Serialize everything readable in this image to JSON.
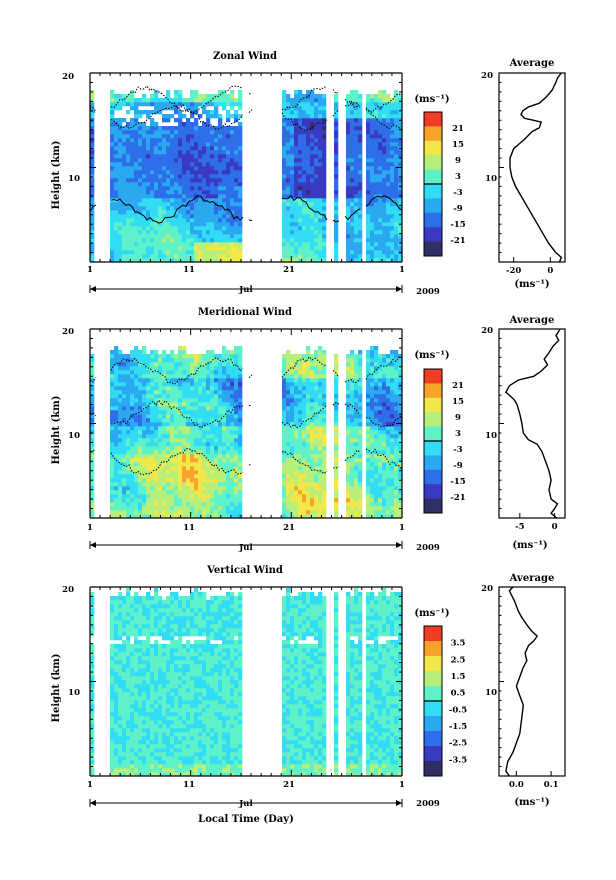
{
  "chart_data": [
    {
      "type": "heatmap",
      "title": "Zonal Wind",
      "ylabel": "Height (km)",
      "ylim": [
        0,
        20
      ],
      "yticks": [
        "10",
        "20"
      ],
      "xticks": [
        "1",
        "11",
        "21",
        "1"
      ],
      "month_label": "Jul",
      "year_label": "2009",
      "colorbar": {
        "unit": "(ms⁻¹)",
        "levels": [
          "21",
          "15",
          "9",
          "3",
          "-3",
          "-9",
          "-15",
          "-21"
        ]
      },
      "average": {
        "title": "Average",
        "xlabel": "(ms⁻¹)",
        "xticks": [
          "-20",
          "0"
        ],
        "yticks": [
          "10",
          "20"
        ],
        "xlim": [
          -28,
          8
        ],
        "profile": [
          [
            5,
            0
          ],
          [
            6,
            0.5
          ],
          [
            3,
            1
          ],
          [
            -1,
            2
          ],
          [
            -4,
            3
          ],
          [
            -7,
            4
          ],
          [
            -10,
            5
          ],
          [
            -13,
            6
          ],
          [
            -16,
            7
          ],
          [
            -19,
            8
          ],
          [
            -21,
            9
          ],
          [
            -22,
            10
          ],
          [
            -22,
            11
          ],
          [
            -20,
            12
          ],
          [
            -17,
            12.5
          ],
          [
            -14,
            13
          ],
          [
            -10,
            13.8
          ],
          [
            -6,
            14.2
          ],
          [
            -5,
            14.8
          ],
          [
            -9,
            15
          ],
          [
            -14,
            15.2
          ],
          [
            -16,
            15.6
          ],
          [
            -15,
            16
          ],
          [
            -12,
            16.4
          ],
          [
            -6,
            16.8
          ],
          [
            -2,
            17.5
          ],
          [
            1,
            18.2
          ],
          [
            3,
            19
          ],
          [
            4,
            19.5
          ],
          [
            6,
            20
          ]
        ]
      }
    },
    {
      "type": "heatmap",
      "title": "Meridional Wind",
      "ylabel": "Height (km)",
      "ylim": [
        0,
        20
      ],
      "yticks": [
        "10",
        "20"
      ],
      "xticks": [
        "1",
        "11",
        "21",
        "1"
      ],
      "month_label": "Jul",
      "year_label": "2009",
      "colorbar": {
        "unit": "(ms⁻¹)",
        "levels": [
          "21",
          "15",
          "9",
          "3",
          "-3",
          "-9",
          "-15",
          "-21"
        ]
      },
      "average": {
        "title": "Average",
        "xlabel": "(ms⁻¹)",
        "xticks": [
          "-5",
          "0"
        ],
        "yticks": [
          "10",
          "20"
        ],
        "xlim": [
          -8,
          1.5
        ],
        "profile": [
          [
            0.3,
            0
          ],
          [
            -0.5,
            0.5
          ],
          [
            0,
            1
          ],
          [
            0.4,
            1.5
          ],
          [
            -0.5,
            2
          ],
          [
            -0.8,
            3
          ],
          [
            -0.5,
            4
          ],
          [
            -0.8,
            5
          ],
          [
            -1.3,
            6
          ],
          [
            -1.8,
            7
          ],
          [
            -2.5,
            7.8
          ],
          [
            -3.8,
            8.3
          ],
          [
            -4.5,
            9
          ],
          [
            -4.7,
            10
          ],
          [
            -5,
            11
          ],
          [
            -5.4,
            12
          ],
          [
            -5.8,
            12.5
          ],
          [
            -6.5,
            13
          ],
          [
            -7,
            13.3
          ],
          [
            -6.5,
            14
          ],
          [
            -5.2,
            14.6
          ],
          [
            -3,
            15
          ],
          [
            -2,
            15.5
          ],
          [
            -1,
            16.2
          ],
          [
            -1.5,
            16.8
          ],
          [
            -0.8,
            17.5
          ],
          [
            -0.2,
            18.2
          ],
          [
            0.6,
            18.8
          ],
          [
            0.2,
            19.3
          ],
          [
            0.8,
            20
          ]
        ]
      }
    },
    {
      "type": "heatmap",
      "title": "Vertical Wind",
      "ylabel": "Height (km)",
      "xlabel": "Local Time (Day)",
      "ylim": [
        0,
        20
      ],
      "yticks": [
        "10",
        "20"
      ],
      "xticks": [
        "1",
        "11",
        "21",
        "1"
      ],
      "month_label": "Jul",
      "year_label": "2009",
      "colorbar": {
        "unit": "(ms⁻¹)",
        "levels": [
          "3.5",
          "2.5",
          "1.5",
          "0.5",
          "-0.5",
          "-1.5",
          "-2.5",
          "-3.5"
        ]
      },
      "average": {
        "title": "Average",
        "xlabel": "(ms⁻¹)",
        "xticks": [
          "0.0",
          "0.1"
        ],
        "yticks": [
          "10",
          "20"
        ],
        "xlim": [
          -0.05,
          0.14
        ],
        "profile": [
          [
            -0.02,
            0
          ],
          [
            -0.03,
            0.5
          ],
          [
            -0.025,
            1.5
          ],
          [
            -0.01,
            2.5
          ],
          [
            0.0,
            3.5
          ],
          [
            0.01,
            4.5
          ],
          [
            0.015,
            6
          ],
          [
            0.02,
            7.5
          ],
          [
            0.01,
            8.5
          ],
          [
            0.0,
            9.5
          ],
          [
            0.01,
            10.5
          ],
          [
            0.02,
            11.5
          ],
          [
            0.03,
            12.2
          ],
          [
            0.025,
            13
          ],
          [
            0.035,
            13.8
          ],
          [
            0.05,
            14.3
          ],
          [
            0.06,
            14.8
          ],
          [
            0.045,
            15.3
          ],
          [
            0.03,
            16
          ],
          [
            0.015,
            16.8
          ],
          [
            0.005,
            17.5
          ],
          [
            -0.005,
            18.5
          ],
          [
            -0.015,
            19.2
          ],
          [
            -0.02,
            19.6
          ],
          [
            -0.01,
            20
          ]
        ]
      }
    }
  ],
  "colors": {
    "scale": [
      "#2f2f63",
      "#3a3ac0",
      "#2e6ee8",
      "#2aa8f0",
      "#33dcf5",
      "#5ff2c8",
      "#b6f07a",
      "#f2e84a",
      "#f7a32e",
      "#ee3d24"
    ]
  }
}
